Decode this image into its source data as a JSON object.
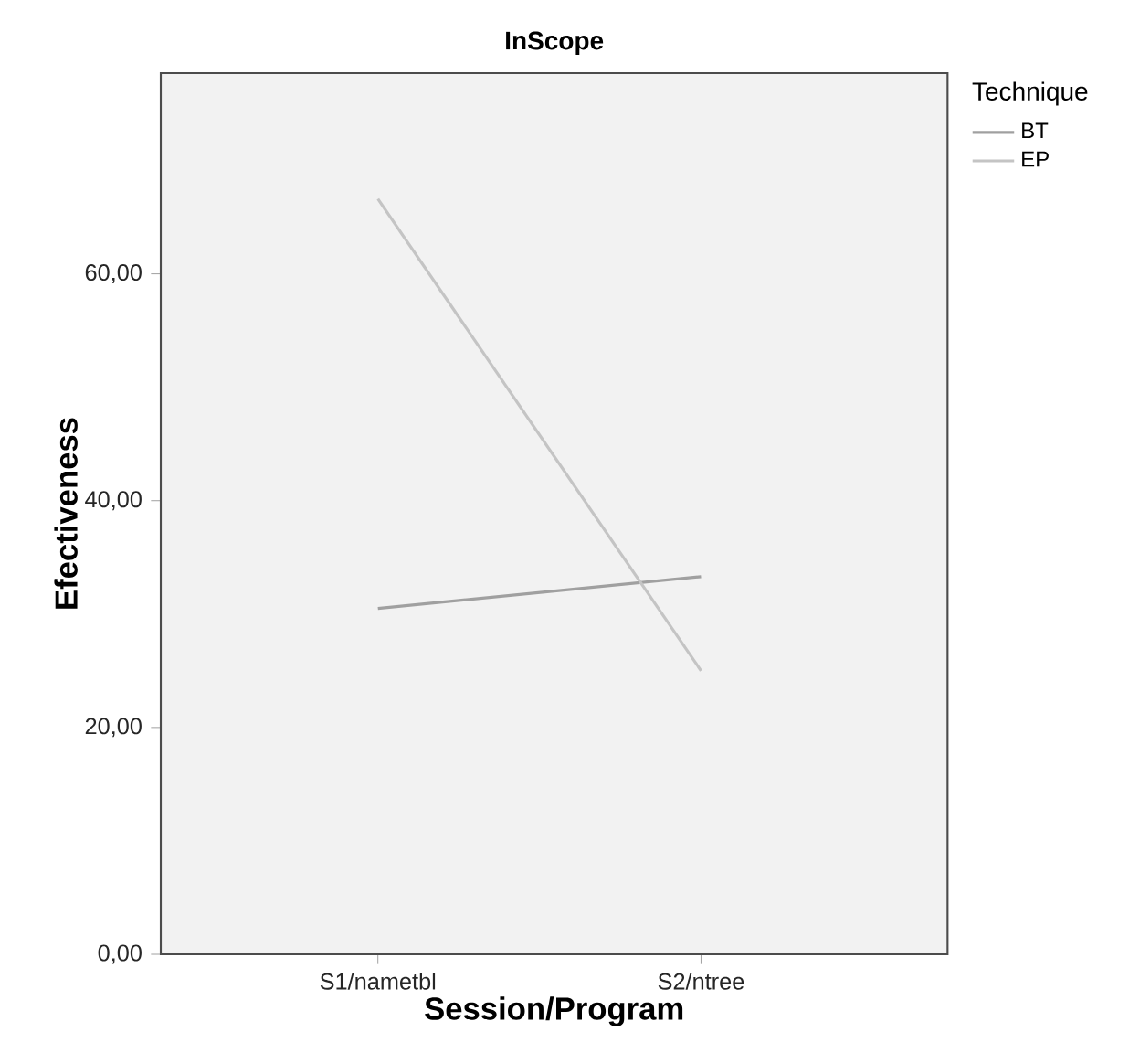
{
  "chart_data": {
    "type": "line",
    "title": "InScope",
    "xlabel": "Session/Program",
    "ylabel": "Efectiveness",
    "legend_title": "Technique",
    "categories": [
      "S1/nametbl",
      "S2/ntree"
    ],
    "series": [
      {
        "name": "BT",
        "color": "#a0a0a0",
        "values": [
          30.5,
          33.3
        ]
      },
      {
        "name": "EP",
        "color": "#c4c4c4",
        "values": [
          66.6,
          25.0
        ]
      }
    ],
    "ylim": [
      0,
      77.7
    ],
    "yticks": [
      {
        "value": 0,
        "label": "0,00"
      },
      {
        "value": 20,
        "label": "20,00"
      },
      {
        "value": 40,
        "label": "40,00"
      },
      {
        "value": 60,
        "label": "60,00"
      }
    ],
    "grid": false,
    "legend": "top right",
    "marker": "none",
    "line_style": "solid"
  }
}
